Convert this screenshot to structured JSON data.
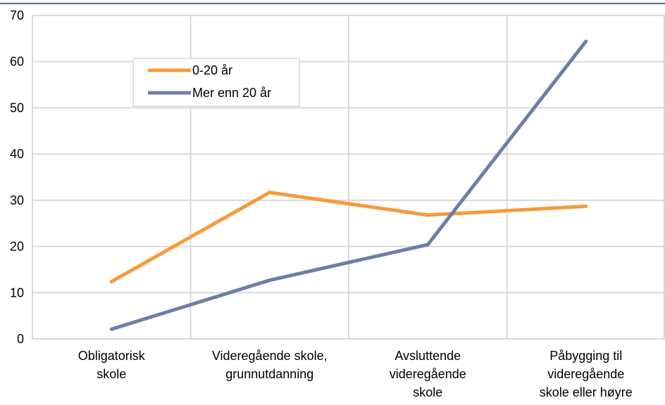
{
  "chart_data": {
    "type": "line",
    "title": "",
    "xlabel": "",
    "ylabel": "",
    "categories": [
      [
        "Obligatorisk",
        "skole"
      ],
      [
        "Videregående skole,",
        "grunnutdanning"
      ],
      [
        "Avsluttende",
        "videregående",
        "skole"
      ],
      [
        "Påbygging til",
        "videregående",
        "skole eller høyre"
      ]
    ],
    "ylim": [
      0,
      70
    ],
    "yticks": [
      "0",
      "10",
      "20",
      "30",
      "40",
      "50",
      "60",
      "70"
    ],
    "grid": true,
    "legend_position": "top-left, inside plot",
    "series": [
      {
        "name": "0-20 år",
        "color": "#F79A3A",
        "values": [
          12.4,
          31.7,
          26.8,
          28.7
        ]
      },
      {
        "name": "Mer enn 20 år",
        "color": "#6B7FA8",
        "values": [
          2.1,
          12.7,
          20.4,
          64.4
        ]
      }
    ],
    "colors": {
      "grid": "#D9D9D9",
      "top_border": "#4F6A8F"
    }
  }
}
